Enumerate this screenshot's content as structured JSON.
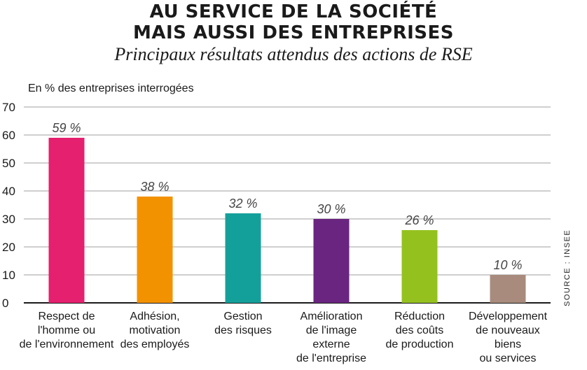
{
  "header": {
    "title_line1": "AU SERVICE DE LA SOCIÉTÉ",
    "title_line2": "MAIS AUSSI DES ENTREPRISES",
    "subtitle": "Principaux résultats attendus des actions de RSE"
  },
  "source": "SOURCE : INSEE",
  "chart_data": {
    "type": "bar",
    "title": "AU SERVICE DE LA SOCIÉTÉ MAIS AUSSI DES ENTREPRISES",
    "subtitle": "Principaux résultats attendus des actions de RSE",
    "ylabel": "En % des entreprises interrogées",
    "ylim": [
      0,
      70
    ],
    "yticks": [
      0,
      10,
      20,
      30,
      40,
      50,
      60,
      70
    ],
    "grid": true,
    "categories": [
      [
        "Respect de",
        "l'homme ou",
        "de l'environnement"
      ],
      [
        "Adhésion,",
        "motivation",
        "des employés"
      ],
      [
        "Gestion",
        "des risques"
      ],
      [
        "Amélioration",
        "de l'image",
        "externe",
        "de l'entreprise"
      ],
      [
        "Réduction",
        "des coûts",
        "de production"
      ],
      [
        "Développement",
        "de nouveaux",
        "biens",
        "ou services"
      ]
    ],
    "values": [
      59,
      38,
      32,
      30,
      26,
      10
    ],
    "value_labels": [
      "59 %",
      "38 %",
      "32 %",
      "30 %",
      "26 %",
      "10 %"
    ],
    "colors": [
      "#e5206f",
      "#f39200",
      "#14a09a",
      "#6a2581",
      "#95c11f",
      "#a88b7c"
    ]
  }
}
